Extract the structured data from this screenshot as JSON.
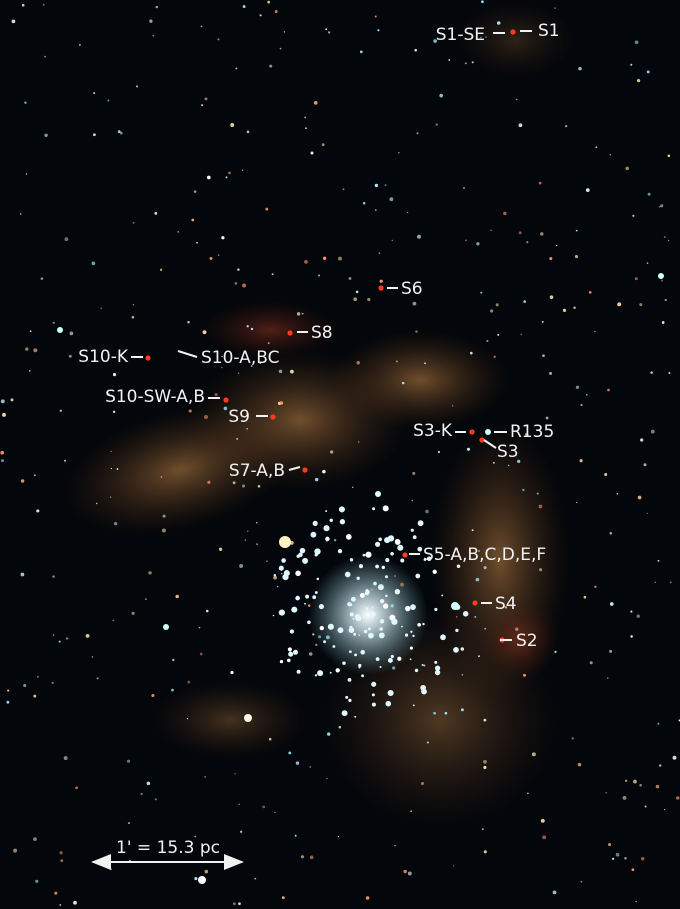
{
  "labels": [
    "S1-SE",
    "S1",
    "S6",
    "S8",
    "S10-K",
    "S10-A,BC",
    "S10-SW-A,B",
    "S9",
    "S3-K",
    "R135",
    "S3",
    "S7-A,B",
    "S5-A,B,C,D,E,F",
    "S4",
    "S2"
  ],
  "scale_bar": "1' = 15.3 pc"
}
